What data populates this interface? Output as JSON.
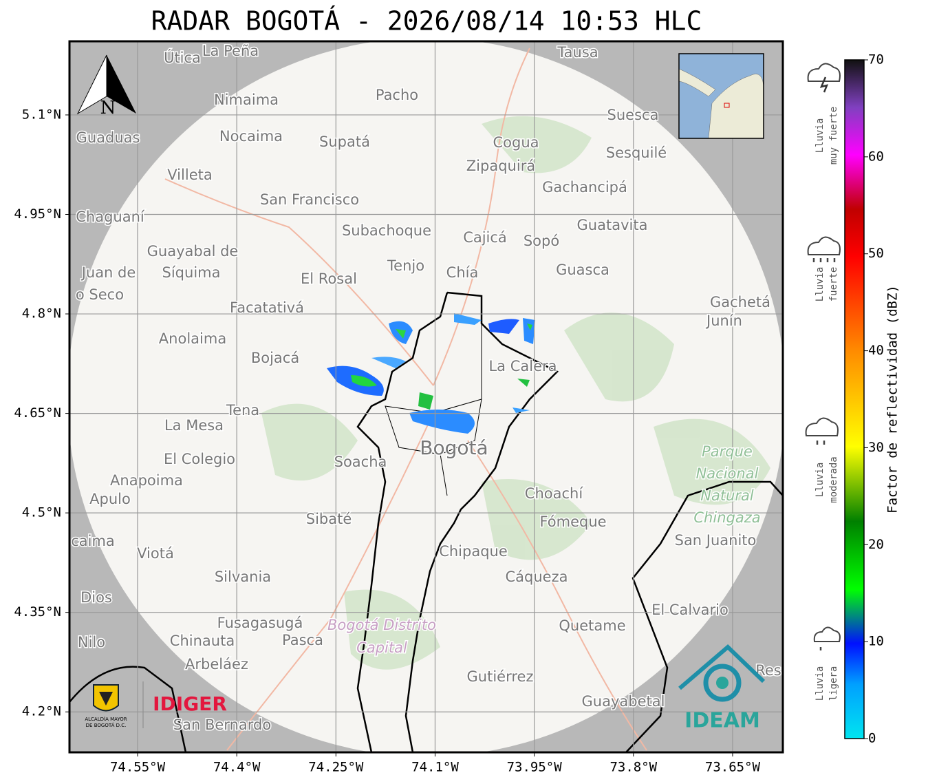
{
  "title": "RADAR BOGOTÁ - 2026/08/14 10:53 HLC",
  "map": {
    "lon_range": [
      -74.653,
      -73.574
    ],
    "lat_range": [
      4.139,
      5.211
    ],
    "lon_ticks": [
      {
        "value": -74.55,
        "label": "74.55°W"
      },
      {
        "value": -74.4,
        "label": "74.4°W"
      },
      {
        "value": -74.25,
        "label": "74.25°W"
      },
      {
        "value": -74.1,
        "label": "74.1°W"
      },
      {
        "value": -73.95,
        "label": "73.95°W"
      },
      {
        "value": -73.8,
        "label": "73.8°W"
      },
      {
        "value": -73.65,
        "label": "73.65°W"
      }
    ],
    "lat_ticks": [
      {
        "value": 5.1,
        "label": "5.1°N"
      },
      {
        "value": 4.95,
        "label": "4.95°N"
      },
      {
        "value": 4.8,
        "label": "4.8°N"
      },
      {
        "value": 4.65,
        "label": "4.65°N"
      },
      {
        "value": 4.5,
        "label": "4.5°N"
      },
      {
        "value": 4.35,
        "label": "4.35°N"
      },
      {
        "value": 4.2,
        "label": "4.2°N"
      }
    ],
    "north": "N",
    "places": [
      "Útica",
      "La Peña",
      "Tausa",
      "Pacho",
      "Nimaima",
      "Guaduas",
      "Nocaima",
      "Supatá",
      "Cogua",
      "Suesca",
      "Sesquilé",
      "Zipaquirá",
      "Villeta",
      "Gachancipá",
      "San Francisco",
      "Chaguaní",
      "Guatavita",
      "Subachoque",
      "Cajicá",
      "Sopó",
      "Guayabal de",
      "Síquima",
      "Juan de",
      "o Seco",
      "Tenjo",
      "Chía",
      "El Rosal",
      "Guasca",
      "Facatativá",
      "Gachetá",
      "Junín",
      "Anolaima",
      "Bojacá",
      "La Calera",
      "Tena",
      "La Mesa",
      "Bogotá",
      "El Colegio",
      "Soacha",
      "Anapoima",
      "Apulo",
      "Choachí",
      "Sibaté",
      "Fómeque",
      "San Juanito",
      "caima",
      "Viotá",
      "Chipaque",
      "Silvania",
      "Cáqueza",
      "Dios",
      "El Calvario",
      "Fusagasugá",
      "Quetame",
      "Nilo",
      "Chinauta",
      "Pasca",
      "Arbeláez",
      "Gutiérrez",
      "Res",
      "Guayabetal",
      "San Bernardo"
    ],
    "park": [
      "Parque",
      "Nacional",
      "Natural",
      "Chingaza"
    ],
    "district": [
      "Bogotá Distrito",
      "Capital"
    ]
  },
  "logos": {
    "idiger": "IDIGER",
    "alcaldia": [
      "ALCALDÍA MAYOR",
      "DE BOGOTÁ D.C."
    ],
    "ideam": "IDEAM"
  },
  "colorbar": {
    "label": "Factor de reflectividad (dBZ)",
    "range": [
      0,
      70
    ],
    "ticks": [
      0,
      10,
      20,
      30,
      40,
      50,
      60,
      70
    ]
  },
  "rain_legend": [
    [
      "Lluvia",
      "muy fuerte"
    ],
    [
      "Lluvia",
      "fuerte"
    ],
    [
      "Lluvia",
      "moderada"
    ],
    [
      "Lluvia",
      "ligera"
    ]
  ]
}
